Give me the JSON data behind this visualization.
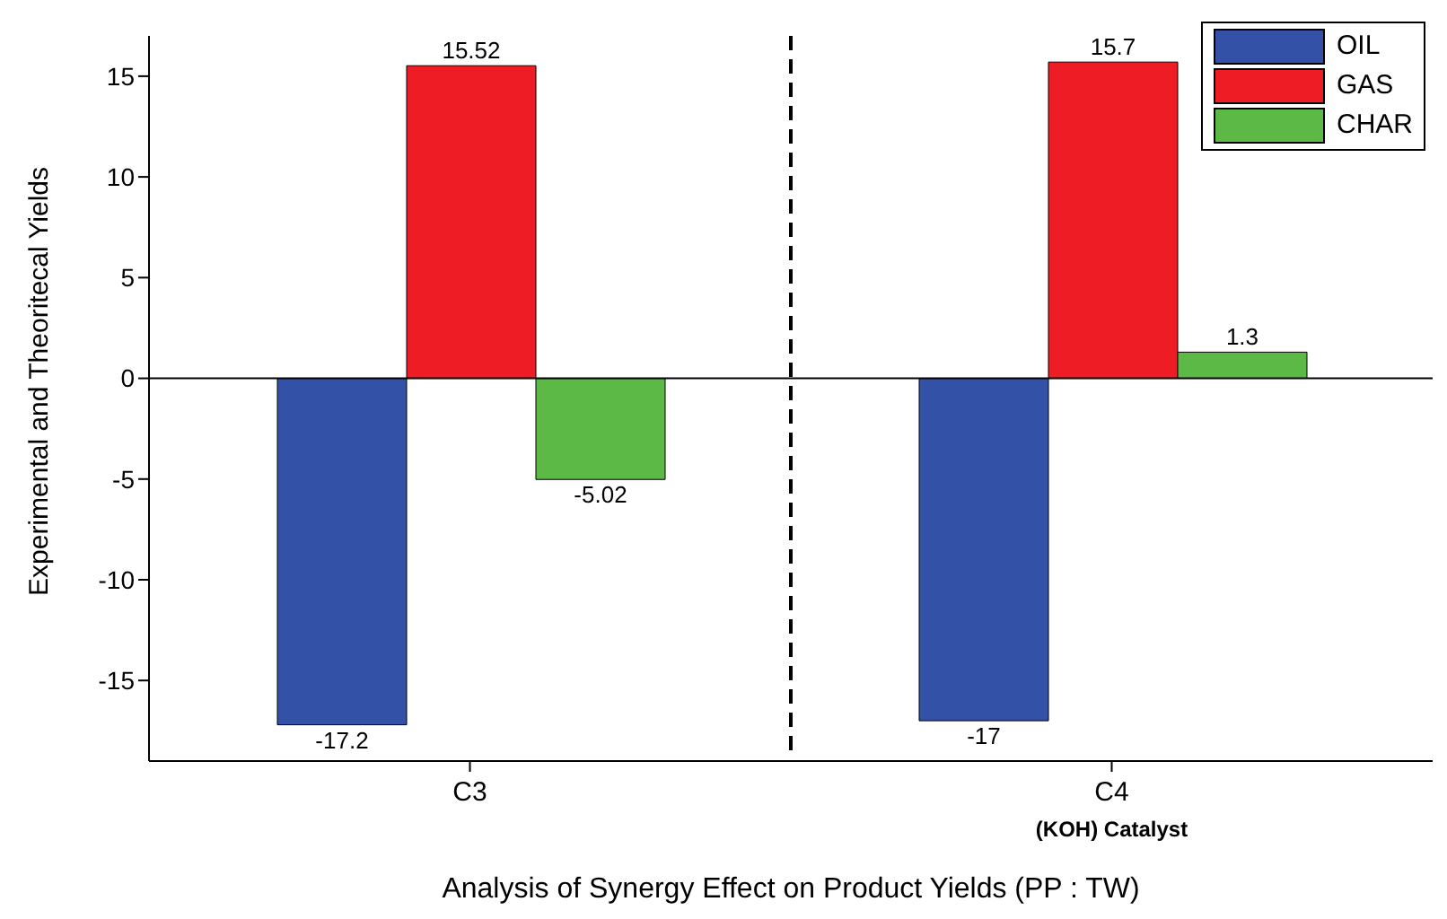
{
  "chart_data": {
    "type": "bar",
    "xlabel": "Analysis of Synergy Effect on Product Yields (PP : TW)",
    "ylabel": "Experimental and Theoritecal Yields",
    "categories": [
      "C3",
      "C4"
    ],
    "series": [
      {
        "name": "OIL",
        "color": "#3451a8",
        "values": [
          -17.2,
          -17
        ]
      },
      {
        "name": "GAS",
        "color": "#ee1c24",
        "values": [
          15.52,
          15.7
        ]
      },
      {
        "name": "CHAR",
        "color": "#5cb946",
        "values": [
          -5.02,
          1.3
        ]
      }
    ],
    "ylim": [
      -19,
      17
    ],
    "yticks": [
      -15,
      -10,
      -5,
      0,
      5,
      10,
      15
    ],
    "ref_lines": [
      {
        "axis": "y",
        "value": 0,
        "color": "#000000"
      }
    ],
    "annotations": [
      "(KOH) Catalyst"
    ],
    "data_labels": true,
    "legend": "top right",
    "grid": false
  }
}
